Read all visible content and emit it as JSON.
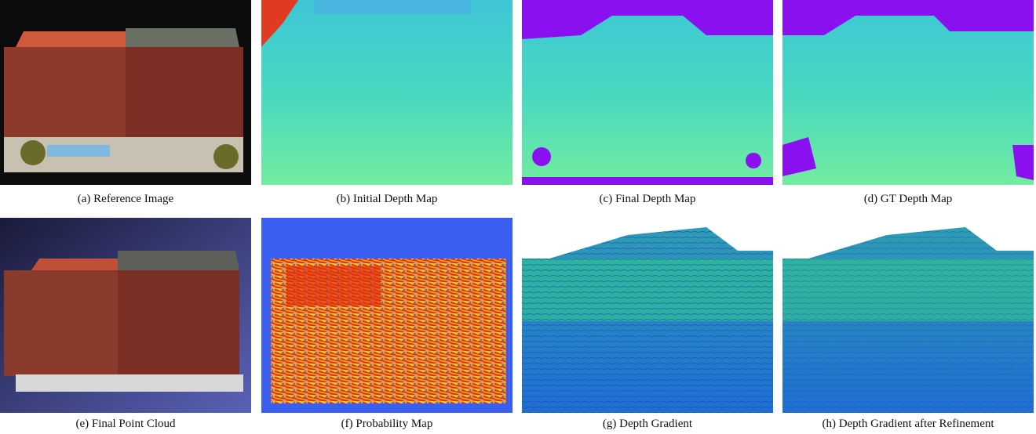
{
  "panels": [
    {
      "caption": "(a) Reference Image"
    },
    {
      "caption": "(b) Initial Depth Map"
    },
    {
      "caption": "(c) Final Depth Map"
    },
    {
      "caption": "(d) GT Depth Map"
    },
    {
      "caption": "(e) Final Point Cloud"
    },
    {
      "caption": "(f) Probability Map"
    },
    {
      "caption": "(g) Depth Gradient"
    },
    {
      "caption": "(h) Depth Gradient after Refinement"
    }
  ]
}
